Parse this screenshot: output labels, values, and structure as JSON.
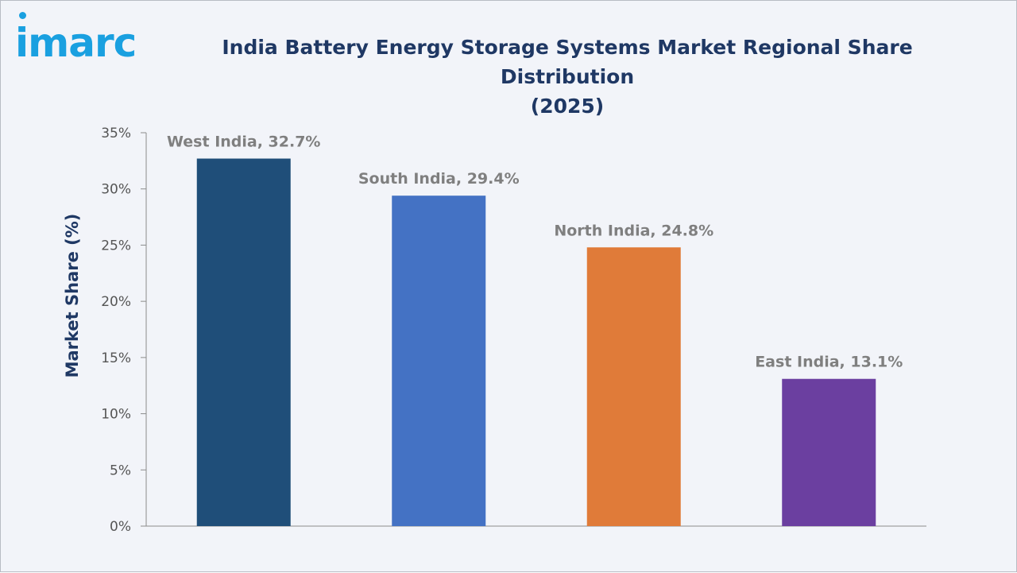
{
  "brand": {
    "logo_text": "imarc",
    "color": "#1aa0e0"
  },
  "chart_data": {
    "type": "bar",
    "title": "India Battery Energy Storage Systems Market Regional Share Distribution (2025)",
    "title_lines": [
      "India Battery Energy Storage Systems Market Regional Share Distribution",
      "(2025)"
    ],
    "ylabel": "Market Share (%)",
    "xlabel": "",
    "ylim": [
      0,
      35
    ],
    "yticks": [
      0,
      5,
      10,
      15,
      20,
      25,
      30,
      35
    ],
    "ytick_labels": [
      "0%",
      "5%",
      "10%",
      "15%",
      "20%",
      "25%",
      "30%",
      "35%"
    ],
    "categories": [
      "West India",
      "South India",
      "North India",
      "East India"
    ],
    "values": [
      32.7,
      29.4,
      24.8,
      13.1
    ],
    "data_labels": [
      "West India, 32.7%",
      "South India, 29.4%",
      "North India, 24.8%",
      "East India, 13.1%"
    ],
    "colors": [
      "#1f4e79",
      "#4472c4",
      "#e07b39",
      "#6b3fa0"
    ],
    "grid": false
  }
}
